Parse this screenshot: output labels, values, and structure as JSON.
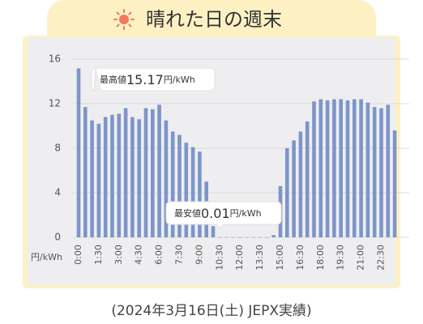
{
  "chart_data": {
    "type": "bar",
    "title": "晴れた日の週末",
    "caption": "(2024年3月16日(土) JEPX実績)",
    "y_label": "円/kWh",
    "color": "#7d95c9",
    "categories": [
      "0:00",
      null,
      null,
      "1:30",
      null,
      null,
      "3:00",
      null,
      null,
      "4:30",
      null,
      null,
      "6:00",
      null,
      null,
      "7:30",
      null,
      null,
      "9:00",
      null,
      null,
      "10:30",
      null,
      null,
      "12:00",
      null,
      null,
      "13:30",
      null,
      null,
      "15:00",
      null,
      null,
      "16:30",
      null,
      null,
      "18:00",
      null,
      null,
      "19:30",
      null,
      null,
      "21:00",
      null,
      null,
      "22:30",
      null,
      null
    ],
    "values": [
      15.17,
      11.7,
      10.5,
      10.2,
      10.8,
      11.0,
      11.1,
      11.6,
      10.8,
      10.6,
      11.6,
      11.5,
      11.9,
      10.5,
      9.5,
      9.2,
      8.5,
      8.1,
      7.7,
      5.0,
      1.0,
      0.01,
      0.01,
      0.01,
      0.01,
      0.01,
      0.01,
      0.01,
      0.01,
      0.2,
      4.6,
      8.0,
      8.7,
      9.5,
      10.4,
      12.2,
      12.4,
      12.3,
      12.4,
      12.4,
      12.3,
      12.4,
      12.4,
      12.1,
      11.7,
      11.6,
      11.9,
      9.6
    ],
    "ylim": [
      0,
      16
    ],
    "yticks": [
      0,
      4,
      8,
      12,
      16
    ],
    "grid": true,
    "annotations": [
      {
        "prefix": "最高値",
        "unit": "円/kWh"
      },
      {
        "prefix": "最安値",
        "unit": "円/kWh"
      }
    ]
  }
}
